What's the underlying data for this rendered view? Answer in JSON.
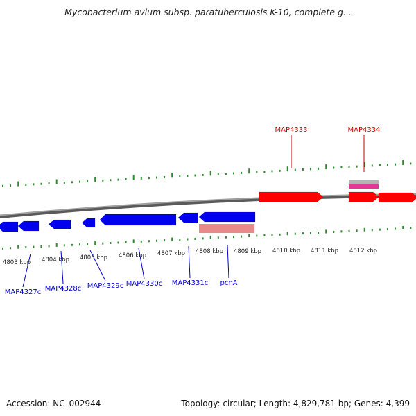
{
  "title": "Mycobacterium avium subsp. paratuberculosis K-10, complete g...",
  "footer": {
    "accession": "Accession: NC_002944",
    "topology": "Topology: circular; Length: 4,829,781 bp; Genes: 4,399"
  },
  "colors": {
    "tick": "#2e8b2e",
    "backbone": "#8a8a8a",
    "forward_gene": "#ff0000",
    "reverse_gene": "#0000ee",
    "label_forward": "#cc0000",
    "label_reverse": "#0000cc",
    "pink_feature": "#e98a8a",
    "magenta_feature": "#e8359c",
    "grey_feature": "#b4b4b4"
  },
  "kbp_labels": [
    "4803 kbp",
    "4804 kbp",
    "4805 kbp",
    "4806 kbp",
    "4807 kbp",
    "4808 kbp",
    "4809 kbp",
    "4810 kbp",
    "4811 kbp",
    "4812 kbp"
  ],
  "gene_labels_forward": [
    "MAP4333",
    "MAP4334"
  ],
  "gene_labels_reverse": [
    "MAP4327c",
    "MAP4328c",
    "MAP4329c",
    "MAP4330c",
    "MAP4331c",
    "pcnA"
  ]
}
